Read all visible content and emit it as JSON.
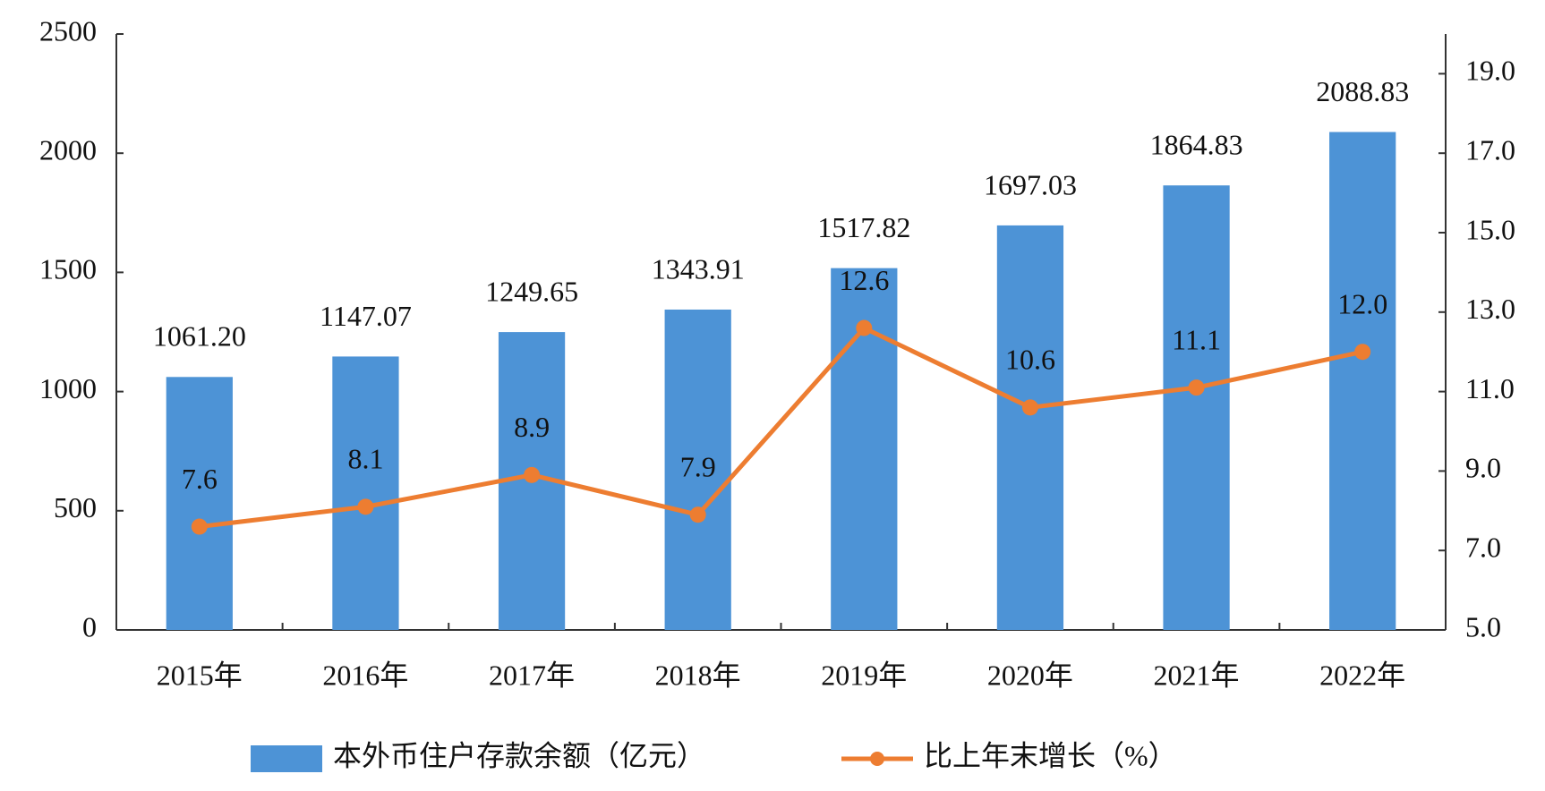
{
  "chart_data": {
    "type": "bar-line",
    "categories": [
      "2015年",
      "2016年",
      "2017年",
      "2018年",
      "2019年",
      "2020年",
      "2021年",
      "2022年"
    ],
    "series": [
      {
        "name": "本外币住户存款余额（亿元）",
        "color": "#4d93d6",
        "type": "bar",
        "values": [
          1061.2,
          1147.07,
          1249.65,
          1343.91,
          1517.82,
          1697.03,
          1864.83,
          2088.83
        ],
        "value_labels": [
          "1061.20",
          "1147.07",
          "1249.65",
          "1343.91",
          "1517.82",
          "1697.03",
          "1864.83",
          "2088.83"
        ]
      },
      {
        "name": "比上年末增长（%）",
        "color": "#ed7d31",
        "type": "line",
        "axis": "y2",
        "values": [
          7.6,
          8.1,
          8.9,
          7.9,
          12.6,
          10.6,
          11.1,
          12.0
        ],
        "value_labels": [
          "7.6",
          "8.1",
          "8.9",
          "7.9",
          "12.6",
          "10.6",
          "11.1",
          "12.0"
        ]
      }
    ],
    "ylim": [
      0,
      2500
    ],
    "yticks": [
      0,
      500,
      1000,
      1500,
      2000,
      2500
    ],
    "y2lim": [
      5,
      20
    ],
    "y2ticks": [
      {
        "value": 5,
        "label": "5.0"
      },
      {
        "value": 7,
        "label": "7.0"
      },
      {
        "value": 9,
        "label": "9.0"
      },
      {
        "value": 11,
        "label": "11.0"
      },
      {
        "value": 13,
        "label": "13.0"
      },
      {
        "value": 15,
        "label": "15.0"
      },
      {
        "value": 17,
        "label": "17.0"
      },
      {
        "value": 19,
        "label": "19.0"
      }
    ],
    "legend": "bottom"
  }
}
